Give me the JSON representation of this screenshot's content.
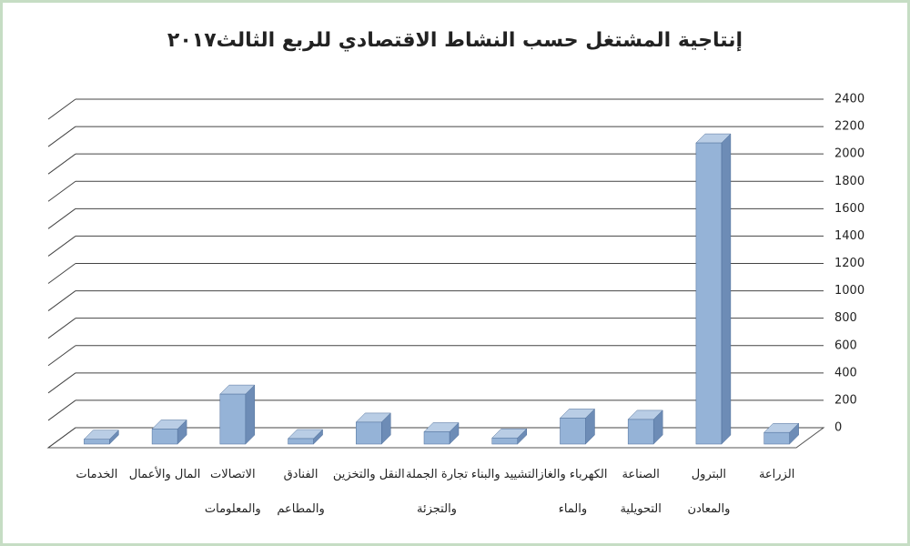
{
  "chart_data": {
    "type": "bar3d",
    "title": "إنتاجية المشتغل حسب النشاط الاقتصادي للربع الثالث٢٠١٧",
    "categories": [
      "الزراعة",
      "البترول والمعادن",
      "الصناعة التحويلية",
      "الكهرباء والغاز والماء",
      "التشييد والبناء",
      "تجارة الجملة والتجزئة",
      "النقل والتخزين",
      "الفنادق والمطاعم",
      "الاتصالات والمعلومات",
      "المال والأعمال",
      "الخدمات"
    ],
    "values": [
      85,
      2200,
      180,
      190,
      45,
      90,
      160,
      40,
      365,
      110,
      35
    ],
    "color": "#95b3d7",
    "ylim": [
      0,
      2400
    ],
    "yticks": [
      0,
      200,
      400,
      600,
      800,
      1000,
      1200,
      1400,
      1600,
      1800,
      2000,
      2200,
      2400
    ],
    "grid": true,
    "category_order": "right-to-left"
  }
}
